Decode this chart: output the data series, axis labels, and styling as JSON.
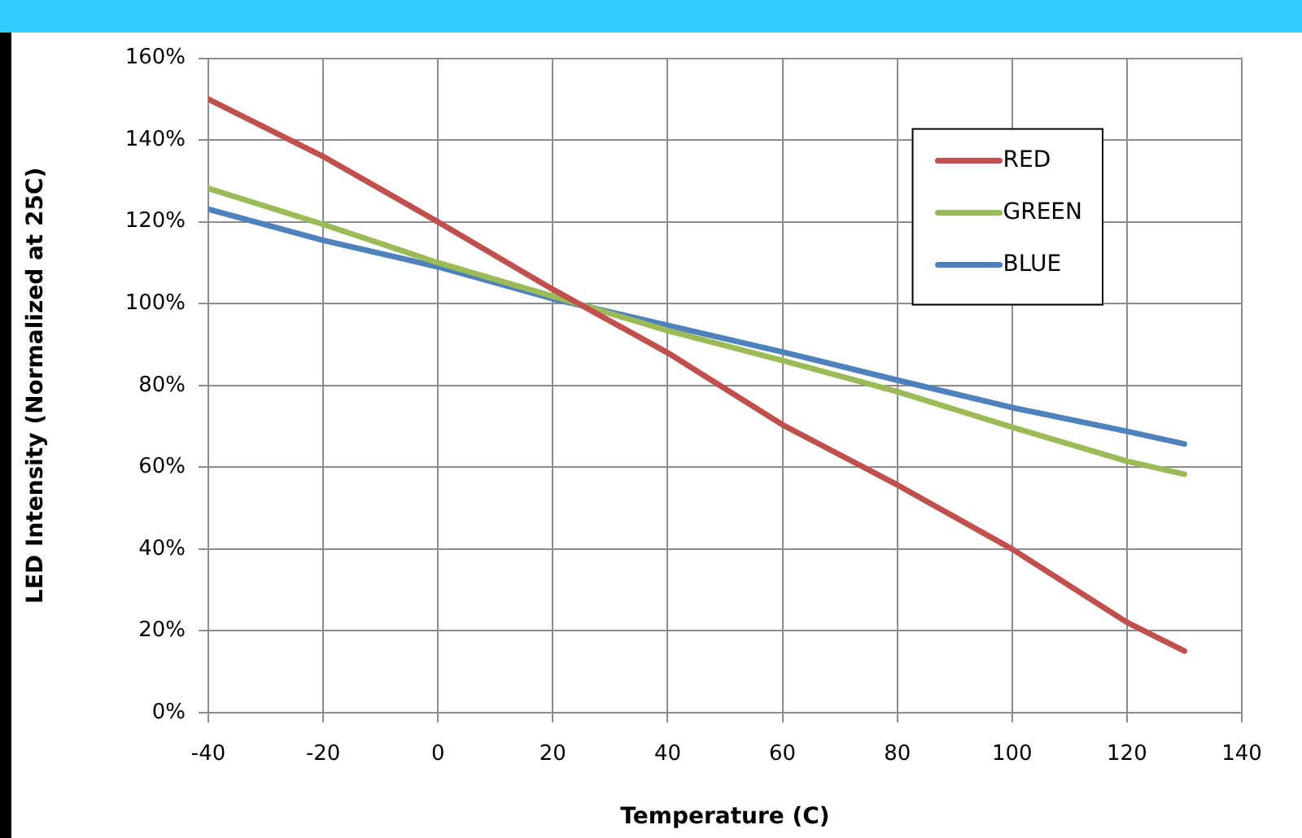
{
  "chart_data": {
    "type": "line",
    "xlabel": "Temperature (C)",
    "ylabel": "LED Intensity (Normalized at 25C)",
    "x": [
      -40,
      -20,
      0,
      20,
      40,
      60,
      80,
      100,
      120,
      130
    ],
    "series": [
      {
        "name": "RED",
        "color": "#c0504d",
        "values": [
          150,
          136,
          120,
          103.5,
          88,
          70.4,
          55.7,
          40,
          22.1,
          15.1
        ]
      },
      {
        "name": "GREEN",
        "color": "#9bbb59",
        "values": [
          128.2,
          119.4,
          110,
          101.8,
          93.4,
          86.1,
          78.5,
          69.8,
          61.5,
          58.3
        ]
      },
      {
        "name": "BLUE",
        "color": "#4f81bd",
        "values": [
          123.1,
          115.5,
          109,
          101.2,
          94.7,
          88.2,
          81.3,
          74.6,
          68.8,
          65.7
        ]
      }
    ],
    "xlim": [
      -40,
      140
    ],
    "xticks": [
      -40,
      -20,
      0,
      20,
      40,
      60,
      80,
      100,
      120,
      140
    ],
    "ylim": [
      0,
      160
    ],
    "yticks": [
      {
        "value": 0,
        "label": "0%"
      },
      {
        "value": 20,
        "label": "20%"
      },
      {
        "value": 40,
        "label": "40%"
      },
      {
        "value": 60,
        "label": "60%"
      },
      {
        "value": 80,
        "label": "80%"
      },
      {
        "value": 100,
        "label": "100%"
      },
      {
        "value": 120,
        "label": "120%"
      },
      {
        "value": 140,
        "label": "140%"
      },
      {
        "value": 160,
        "label": "160%"
      }
    ],
    "grid": true,
    "legend": "top right",
    "marker": "none",
    "line_style": "solid"
  }
}
